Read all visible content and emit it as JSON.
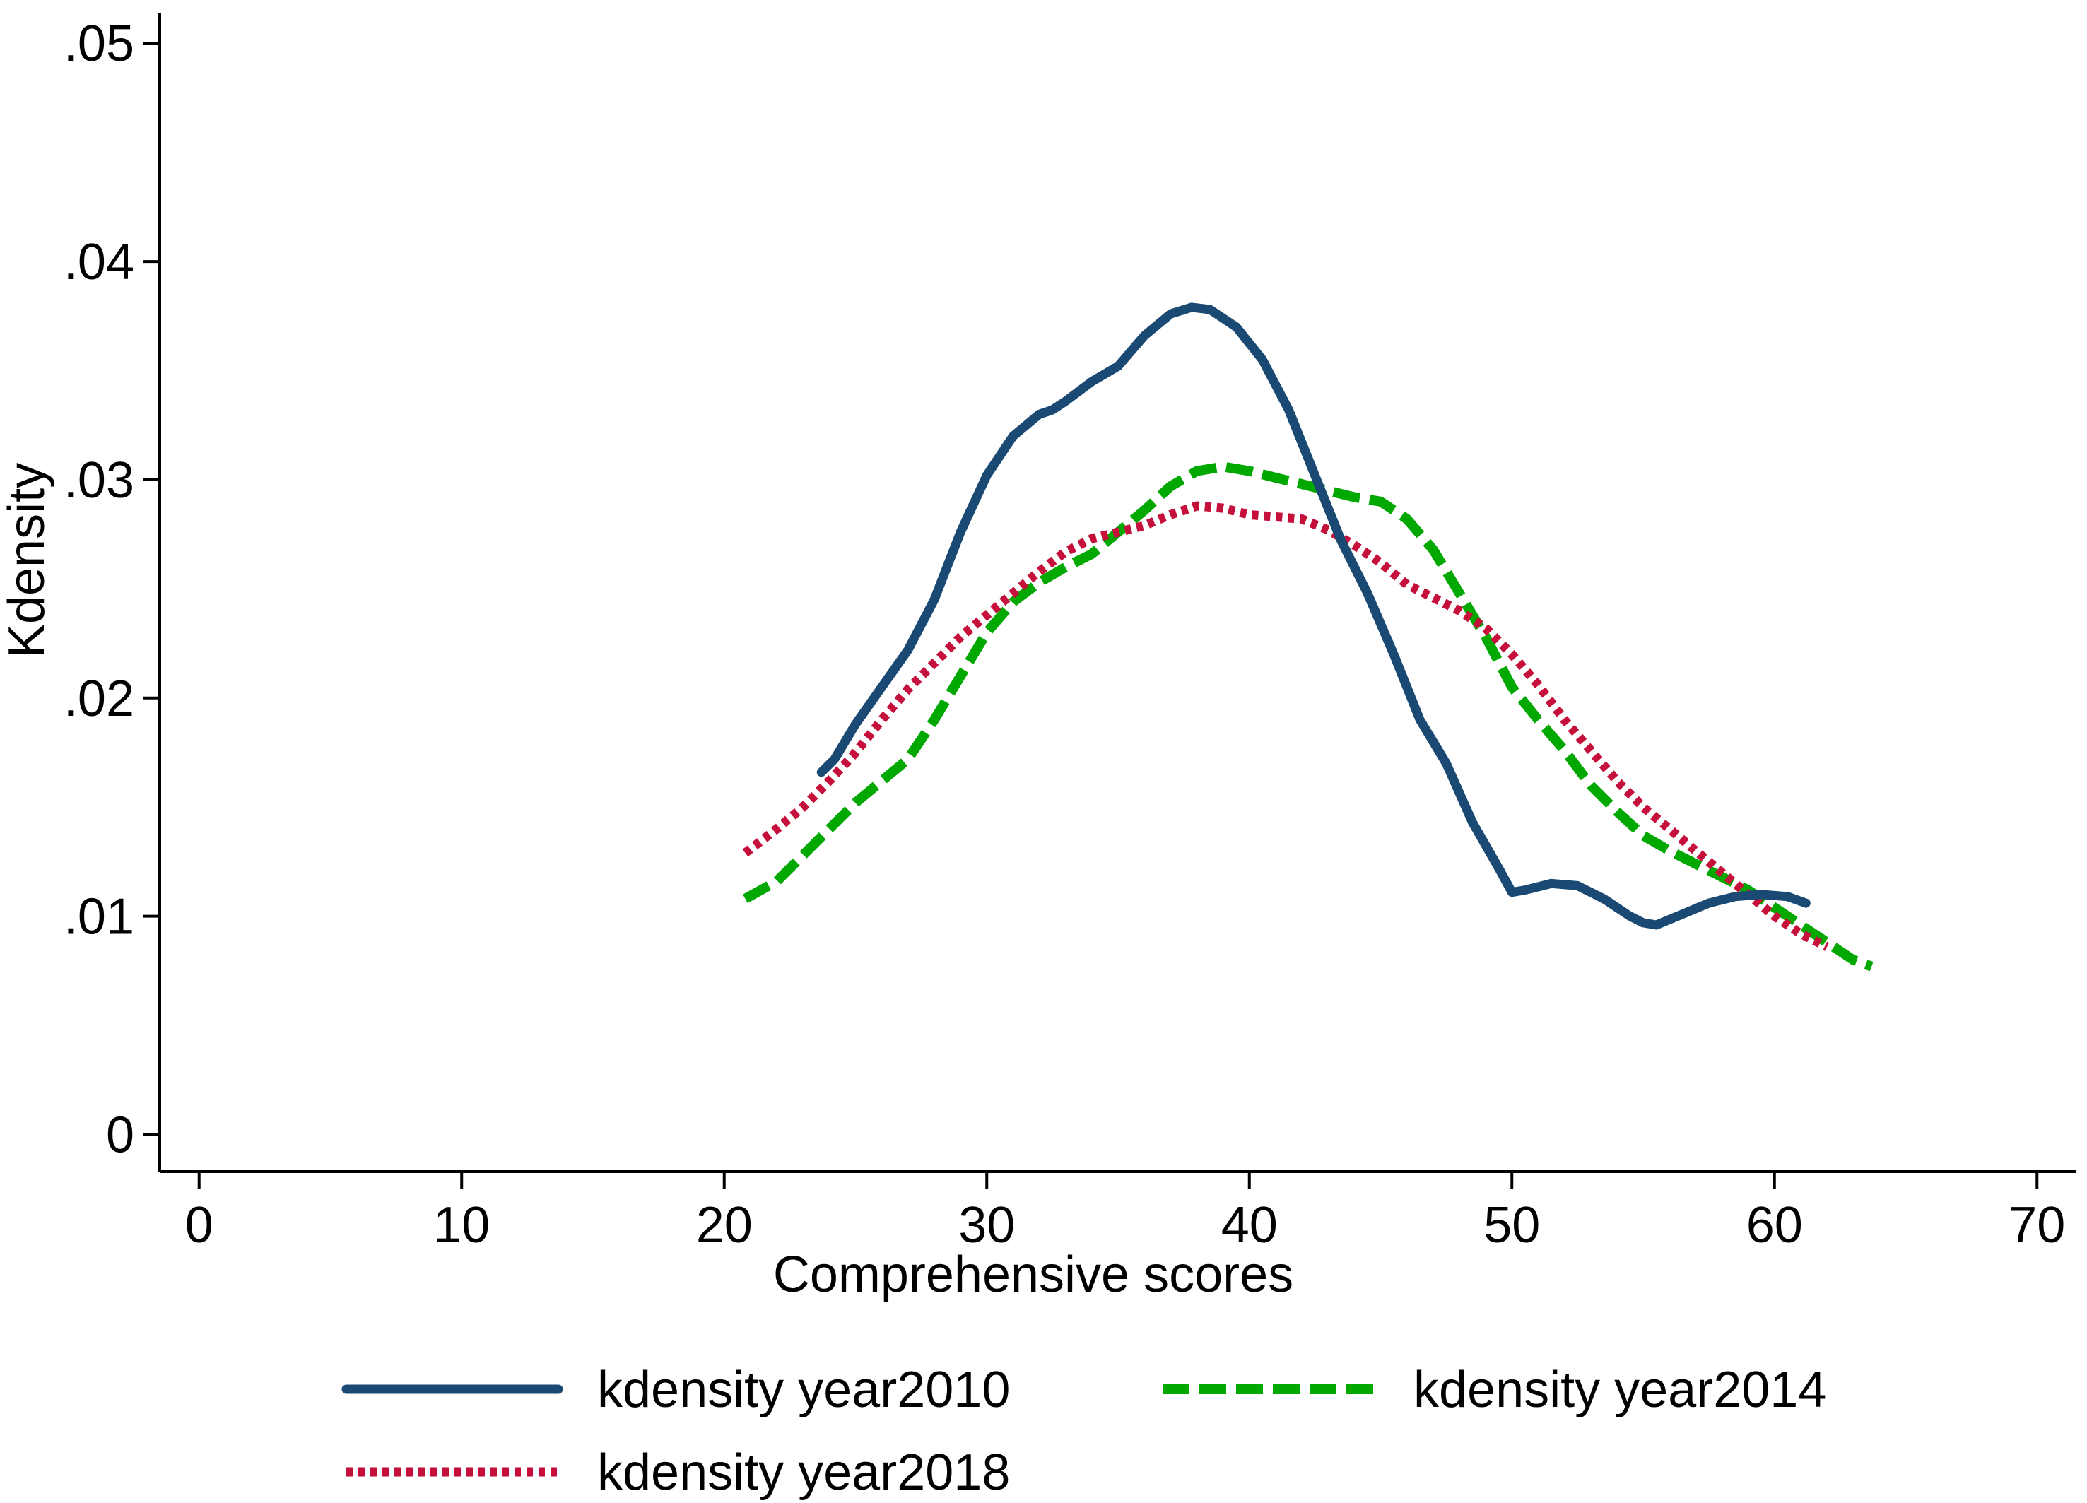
{
  "chart_data": {
    "type": "line",
    "title": "",
    "xlabel": "Comprehensive scores",
    "ylabel": "Kdensity",
    "xlim": [
      -1.5,
      71.5
    ],
    "ylim": [
      -0.0017,
      0.0514
    ],
    "xticks": [
      0,
      10,
      20,
      30,
      40,
      50,
      60,
      70
    ],
    "xtick_labels": [
      "0",
      "10",
      "20",
      "30",
      "40",
      "50",
      "60",
      "70"
    ],
    "yticks": [
      0,
      0.01,
      0.02,
      0.03,
      0.04,
      0.05
    ],
    "ytick_labels": [
      "0",
      ".01",
      ".02",
      ".03",
      ".04",
      ".05"
    ],
    "grid": false,
    "legend_position": "bottom",
    "series": [
      {
        "name": "kdensity year2010",
        "color": "#1a4a73",
        "style": "solid",
        "points": [
          [
            23.7,
            0.0166
          ],
          [
            24.2,
            0.0172
          ],
          [
            25.0,
            0.0188
          ],
          [
            26.0,
            0.0205
          ],
          [
            27.0,
            0.0222
          ],
          [
            28.0,
            0.0245
          ],
          [
            29.0,
            0.0276
          ],
          [
            30.0,
            0.0302
          ],
          [
            31.0,
            0.032
          ],
          [
            32.0,
            0.033
          ],
          [
            32.5,
            0.0332
          ],
          [
            33.0,
            0.0336
          ],
          [
            34.0,
            0.0345
          ],
          [
            35.0,
            0.0352
          ],
          [
            36.0,
            0.0366
          ],
          [
            37.0,
            0.0376
          ],
          [
            37.8,
            0.0379
          ],
          [
            38.5,
            0.0378
          ],
          [
            39.5,
            0.037
          ],
          [
            40.5,
            0.0355
          ],
          [
            41.5,
            0.0332
          ],
          [
            42.5,
            0.0302
          ],
          [
            43.5,
            0.0272
          ],
          [
            44.5,
            0.0248
          ],
          [
            45.5,
            0.022
          ],
          [
            46.5,
            0.019
          ],
          [
            47.5,
            0.017
          ],
          [
            48.5,
            0.0143
          ],
          [
            49.5,
            0.0122
          ],
          [
            50.0,
            0.0111
          ],
          [
            50.5,
            0.0112
          ],
          [
            51.5,
            0.0115
          ],
          [
            52.5,
            0.0114
          ],
          [
            53.5,
            0.0108
          ],
          [
            54.5,
            0.01
          ],
          [
            55.0,
            0.0097
          ],
          [
            55.5,
            0.0096
          ],
          [
            56.5,
            0.0101
          ],
          [
            57.5,
            0.0106
          ],
          [
            58.5,
            0.0109
          ],
          [
            59.5,
            0.011
          ],
          [
            60.5,
            0.0109
          ],
          [
            61.2,
            0.0106
          ]
        ]
      },
      {
        "name": "kdensity year2014",
        "color": "#00a800",
        "style": "dashed",
        "points": [
          [
            20.8,
            0.0108
          ],
          [
            22.0,
            0.0116
          ],
          [
            23.0,
            0.0128
          ],
          [
            24.0,
            0.014
          ],
          [
            25.0,
            0.0152
          ],
          [
            26.0,
            0.0162
          ],
          [
            27.0,
            0.0172
          ],
          [
            28.0,
            0.019
          ],
          [
            29.0,
            0.021
          ],
          [
            30.0,
            0.023
          ],
          [
            31.0,
            0.0244
          ],
          [
            32.0,
            0.0253
          ],
          [
            33.0,
            0.026
          ],
          [
            34.0,
            0.0266
          ],
          [
            35.0,
            0.0276
          ],
          [
            36.0,
            0.0286
          ],
          [
            37.0,
            0.0297
          ],
          [
            38.0,
            0.0304
          ],
          [
            39.0,
            0.0306
          ],
          [
            40.0,
            0.0304
          ],
          [
            41.0,
            0.0301
          ],
          [
            42.0,
            0.0298
          ],
          [
            43.0,
            0.0295
          ],
          [
            44.0,
            0.0292
          ],
          [
            45.0,
            0.029
          ],
          [
            46.0,
            0.0282
          ],
          [
            47.0,
            0.0268
          ],
          [
            48.0,
            0.0248
          ],
          [
            49.0,
            0.0228
          ],
          [
            50.0,
            0.0205
          ],
          [
            51.0,
            0.019
          ],
          [
            52.0,
            0.0176
          ],
          [
            53.0,
            0.016
          ],
          [
            54.0,
            0.0148
          ],
          [
            55.0,
            0.0137
          ],
          [
            56.0,
            0.013
          ],
          [
            57.0,
            0.0124
          ],
          [
            58.0,
            0.0118
          ],
          [
            59.0,
            0.0112
          ],
          [
            60.0,
            0.0104
          ],
          [
            61.0,
            0.0096
          ],
          [
            62.0,
            0.0088
          ],
          [
            63.0,
            0.008
          ],
          [
            63.7,
            0.0077
          ]
        ]
      },
      {
        "name": "kdensity year2018",
        "color": "#c4103a",
        "style": "dotted",
        "points": [
          [
            20.8,
            0.0129
          ],
          [
            22.0,
            0.014
          ],
          [
            23.0,
            0.015
          ],
          [
            24.0,
            0.0162
          ],
          [
            25.0,
            0.0175
          ],
          [
            26.0,
            0.019
          ],
          [
            27.0,
            0.0204
          ],
          [
            28.0,
            0.0216
          ],
          [
            29.0,
            0.0228
          ],
          [
            30.0,
            0.0238
          ],
          [
            31.0,
            0.0248
          ],
          [
            32.0,
            0.0258
          ],
          [
            33.0,
            0.0267
          ],
          [
            34.0,
            0.0273
          ],
          [
            35.0,
            0.0276
          ],
          [
            36.0,
            0.0279
          ],
          [
            37.0,
            0.0284
          ],
          [
            38.0,
            0.0288
          ],
          [
            39.0,
            0.0287
          ],
          [
            40.0,
            0.0284
          ],
          [
            41.0,
            0.0283
          ],
          [
            42.0,
            0.0282
          ],
          [
            43.0,
            0.0277
          ],
          [
            44.0,
            0.027
          ],
          [
            45.0,
            0.0262
          ],
          [
            46.0,
            0.0252
          ],
          [
            47.0,
            0.0246
          ],
          [
            48.0,
            0.024
          ],
          [
            49.0,
            0.0232
          ],
          [
            50.0,
            0.022
          ],
          [
            51.0,
            0.0206
          ],
          [
            52.0,
            0.019
          ],
          [
            53.0,
            0.0176
          ],
          [
            54.0,
            0.0162
          ],
          [
            55.0,
            0.015
          ],
          [
            56.0,
            0.014
          ],
          [
            57.0,
            0.013
          ],
          [
            58.0,
            0.012
          ],
          [
            59.0,
            0.011
          ],
          [
            60.0,
            0.01
          ],
          [
            61.0,
            0.0092
          ],
          [
            62.0,
            0.0086
          ]
        ]
      }
    ]
  }
}
